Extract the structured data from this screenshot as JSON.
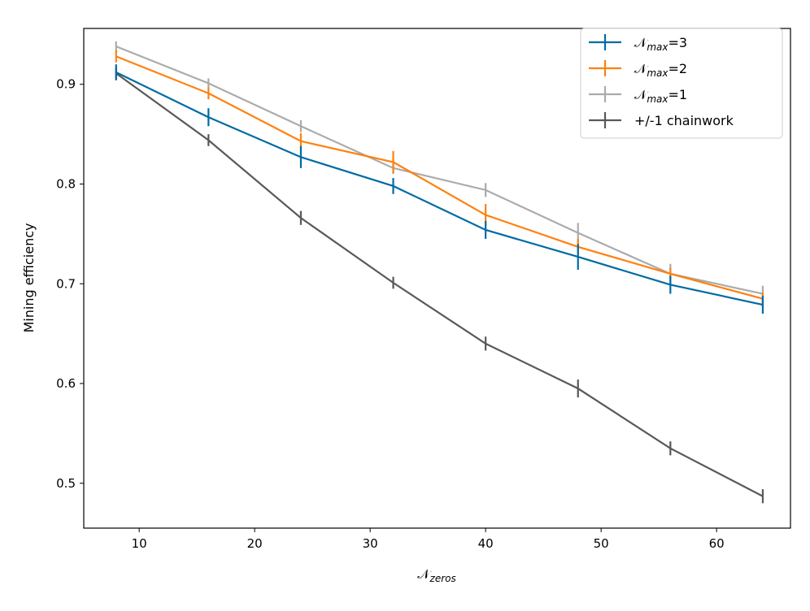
{
  "chart_data": {
    "type": "line",
    "title": "",
    "xlabel": "𝒩",
    "xlabel_sub": "zeros",
    "ylabel": "Mining efficiency",
    "xlim": [
      5.2,
      66.4
    ],
    "ylim": [
      0.455,
      0.956
    ],
    "xticks": [
      10,
      20,
      30,
      40,
      50,
      60
    ],
    "yticks": [
      0.5,
      0.6,
      0.7,
      0.8,
      0.9
    ],
    "ytick_labels": [
      "0.5",
      "0.6",
      "0.7",
      "0.8",
      "0.9"
    ],
    "grid": false,
    "legend_position": "top-right",
    "x": [
      8,
      16,
      24,
      32,
      40,
      48,
      56,
      64
    ],
    "series": [
      {
        "name": "𝒩",
        "name_sub": "max",
        "name_suffix": "=3",
        "color": "#006BA4",
        "values": [
          0.912,
          0.867,
          0.827,
          0.798,
          0.754,
          0.727,
          0.699,
          0.679
        ],
        "errors": [
          0.008,
          0.009,
          0.011,
          0.008,
          0.009,
          0.013,
          0.009,
          0.009
        ]
      },
      {
        "name": "𝒩",
        "name_sub": "max",
        "name_suffix": "=2",
        "color": "#FF800E",
        "values": [
          0.928,
          0.891,
          0.843,
          0.822,
          0.769,
          0.737,
          0.71,
          0.685
        ],
        "errors": [
          0.006,
          0.006,
          0.008,
          0.011,
          0.011,
          0.008,
          0.006,
          0.006
        ]
      },
      {
        "name": "𝒩",
        "name_sub": "max",
        "name_suffix": "=1",
        "color": "#ABABAB",
        "values": [
          0.938,
          0.901,
          0.858,
          0.816,
          0.794,
          0.751,
          0.71,
          0.69
        ],
        "errors": [
          0.005,
          0.005,
          0.006,
          0.006,
          0.007,
          0.01,
          0.01,
          0.008
        ]
      },
      {
        "name": "+/-1 chainwork",
        "name_sub": "",
        "name_suffix": "",
        "color": "#595959",
        "values": [
          0.911,
          0.844,
          0.766,
          0.701,
          0.64,
          0.595,
          0.535,
          0.487
        ],
        "errors": [
          0.006,
          0.006,
          0.007,
          0.006,
          0.007,
          0.009,
          0.007,
          0.007
        ]
      }
    ]
  }
}
